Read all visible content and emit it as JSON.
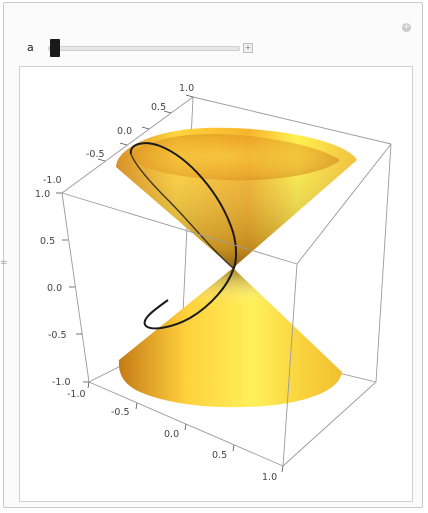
{
  "controls": {
    "parameter_label": "a",
    "slider_value": 0.05,
    "add_glyph": "+",
    "corner_glyph": "+"
  },
  "side_mark": "=",
  "plot": {
    "type": "3d-surface",
    "surface": "double cone",
    "curve": "ellipse (plane section)",
    "colors": {
      "surface_light": "#fff04a",
      "surface_mid": "#f5b62a",
      "surface_dark": "#b07014",
      "curve": "#1a1a1a",
      "box": "#9a9a9a"
    },
    "top_back_ticks": [
      "1.0",
      "0.5",
      "0.0",
      "-0.5",
      "-1.0"
    ],
    "left_vertical_ticks": [
      "1.0",
      "0.5",
      "0.0",
      "-0.5",
      "-1.0"
    ],
    "bottom_front_ticks": [
      "-1.0",
      "-0.5",
      "0.0",
      "0.5",
      "1.0"
    ]
  }
}
